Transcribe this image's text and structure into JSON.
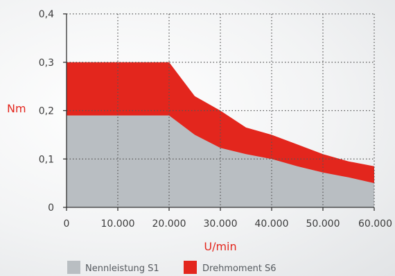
{
  "chart_data": {
    "type": "area",
    "title": "",
    "xlabel": "U/min",
    "ylabel": "Nm",
    "xlim": [
      0,
      60000
    ],
    "ylim": [
      0,
      0.4
    ],
    "x_ticks": [
      {
        "value": 0,
        "label": "0"
      },
      {
        "value": 10000,
        "label": "10.000"
      },
      {
        "value": 20000,
        "label": "20.000"
      },
      {
        "value": 30000,
        "label": "30.000"
      },
      {
        "value": 40000,
        "label": "40.000"
      },
      {
        "value": 50000,
        "label": "50.000"
      },
      {
        "value": 60000,
        "label": "60.000"
      }
    ],
    "y_ticks": [
      {
        "value": 0,
        "label": "0"
      },
      {
        "value": 0.1,
        "label": "0,1"
      },
      {
        "value": 0.2,
        "label": "0,2"
      },
      {
        "value": 0.3,
        "label": "0,3"
      },
      {
        "value": 0.4,
        "label": "0,4"
      }
    ],
    "grid": true,
    "legend_position": "bottom",
    "series": [
      {
        "name": "Drehmoment S6",
        "color": "#e3261d",
        "x": [
          0,
          20000,
          25000,
          30000,
          35000,
          40000,
          45000,
          50000,
          55000,
          60000
        ],
        "y": [
          0.3,
          0.3,
          0.23,
          0.2,
          0.165,
          0.15,
          0.13,
          0.11,
          0.095,
          0.085
        ]
      },
      {
        "name": "Nennleistung S1",
        "color": "#b9bec2",
        "x": [
          0,
          20000,
          25000,
          30000,
          35000,
          40000,
          45000,
          50000,
          55000,
          60000
        ],
        "y": [
          0.19,
          0.19,
          0.15,
          0.123,
          0.11,
          0.1,
          0.085,
          0.072,
          0.062,
          0.05
        ]
      }
    ]
  }
}
